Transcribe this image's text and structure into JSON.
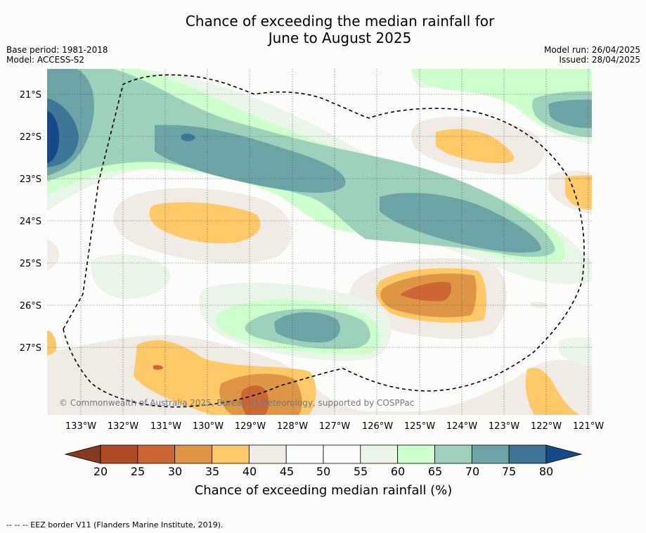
{
  "title": {
    "line1": "Chance of exceeding the median rainfall for",
    "line2": "June to August 2025"
  },
  "meta": {
    "base_period": "Base period: 1981-2018",
    "model": "Model: ACCESS-S2",
    "model_run": "Model run: 26/04/2025",
    "issued": "Issued: 28/04/2025"
  },
  "map": {
    "lat_labels": [
      "21°S",
      "22°S",
      "23°S",
      "24°S",
      "25°S",
      "26°S",
      "27°S"
    ],
    "lon_labels": [
      "133°W",
      "132°W",
      "131°W",
      "130°W",
      "129°W",
      "128°W",
      "127°W",
      "126°W",
      "125°W",
      "124°W",
      "123°W",
      "122°W",
      "121°W"
    ],
    "copyright": "© Commonwealth of Australia 2025, Bureau of Meteorology, supported by COSPPac",
    "eez_line_style": "dashed"
  },
  "colorbar": {
    "ticks": [
      "20",
      "25",
      "30",
      "35",
      "40",
      "45",
      "50",
      "55",
      "60",
      "65",
      "70",
      "75",
      "80"
    ],
    "label": "Chance of exceeding median rainfall (%)",
    "colors": {
      "below_20": "#873a1f",
      "c20_25": "#b04b24",
      "c25_30": "#cc6633",
      "c30_35": "#df9644",
      "c35_40": "#fec966",
      "c40_45": "#f1ebe6",
      "c45_50": "#fcfdfb",
      "c50_55": "#fcfdfb",
      "c55_60": "#e9f5e8",
      "c60_65": "#ccffcc",
      "c65_70": "#9ed1bb",
      "c70_75": "#6da3a6",
      "c75_80": "#3f7597",
      "above_80": "#154a8a"
    }
  },
  "footer": "--  --  -- EEZ border V11 (Flanders Marine Institute, 2019)."
}
